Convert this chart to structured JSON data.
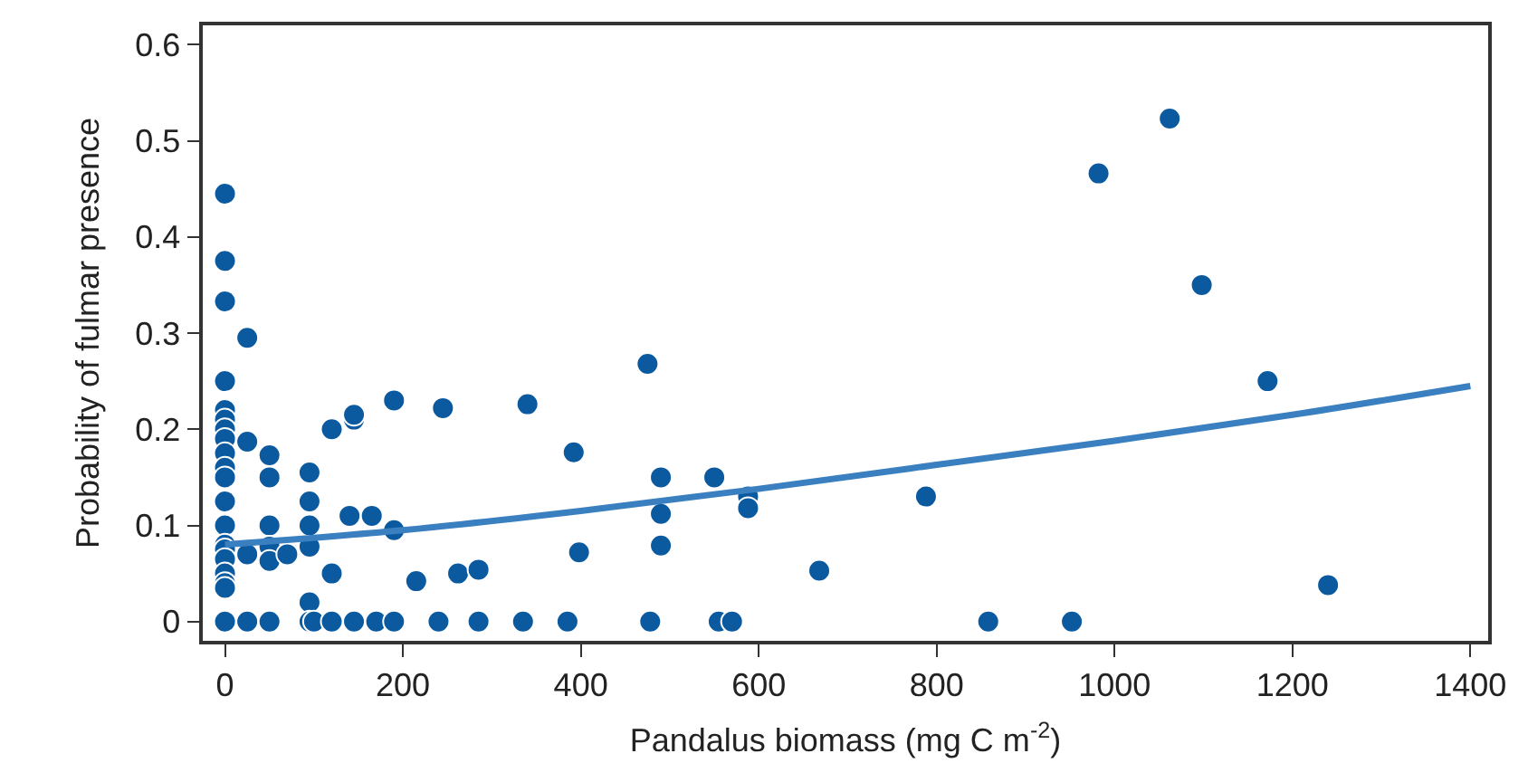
{
  "chart_data": {
    "type": "scatter",
    "xlabel": "Pandalus biomass (mg C m$^{-2}$)",
    "ylabel": "Probability of fulmar presence",
    "xlim": [
      -25,
      1420
    ],
    "ylim": [
      -0.02,
      0.62
    ],
    "xticks": [
      0,
      200,
      400,
      600,
      800,
      1000,
      1200,
      1400
    ],
    "yticks": [
      0,
      0.1,
      0.2,
      0.3,
      0.4,
      0.5,
      0.6
    ],
    "series": [
      {
        "marker": "circle",
        "color": "#0b5aa0",
        "x": [
          0,
          0,
          0,
          0,
          0,
          0,
          0,
          0,
          0,
          0,
          0,
          0,
          0,
          0,
          0,
          0,
          0,
          0,
          0,
          0,
          25,
          25,
          25,
          25,
          50,
          50,
          50,
          50,
          50,
          50,
          70,
          95,
          95,
          95,
          95,
          95,
          95,
          100,
          120,
          120,
          120,
          145,
          145,
          140,
          145,
          165,
          170,
          190,
          190,
          190,
          215,
          240,
          245,
          262,
          285,
          285,
          335,
          340,
          385,
          392,
          398,
          475,
          478,
          490,
          490,
          490,
          550,
          555,
          570,
          588,
          588,
          668,
          788,
          858,
          952,
          982,
          1062,
          1098,
          1172,
          1240
        ],
        "values": [
          0.445,
          0.375,
          0.333,
          0.25,
          0.22,
          0.21,
          0.2,
          0.19,
          0.175,
          0.16,
          0.15,
          0.125,
          0.1,
          0.08,
          0.075,
          0.065,
          0.05,
          0.04,
          0.035,
          0,
          0.295,
          0.187,
          0.07,
          0,
          0.173,
          0.15,
          0.1,
          0.078,
          0.063,
          0,
          0.07,
          0.155,
          0.125,
          0.1,
          0.078,
          0.02,
          0,
          0,
          0.2,
          0.05,
          0,
          0.21,
          0.215,
          0.11,
          0,
          0.11,
          0,
          0.23,
          0.095,
          0,
          0.042,
          0,
          0.222,
          0.05,
          0.054,
          0,
          0,
          0.226,
          0,
          0.176,
          0.072,
          0.268,
          0,
          0.15,
          0.112,
          0.079,
          0.15,
          0,
          0,
          0.13,
          0.118,
          0.053,
          0.13,
          0,
          0,
          0.466,
          0.523,
          0.35,
          0.25,
          0.038
        ]
      },
      {
        "type": "line",
        "color": "#3a7fc0",
        "line_style": "solid",
        "x": [
          0,
          200,
          400,
          600,
          800,
          1000,
          1200,
          1400
        ],
        "values": [
          0.08,
          0.095,
          0.115,
          0.138,
          0.163,
          0.188,
          0.215,
          0.245
        ]
      }
    ]
  }
}
